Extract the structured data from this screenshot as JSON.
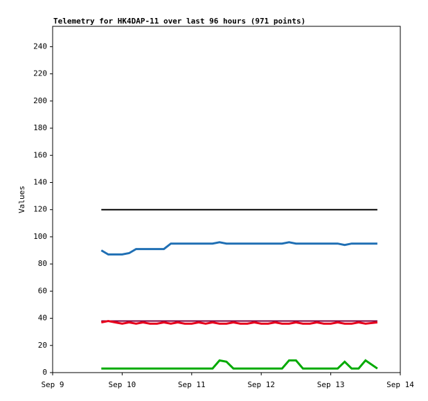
{
  "chart_data": {
    "type": "line",
    "title": "Telemetry for HK4DAP-11 over last 96 hours (971 points)",
    "y_label": "Values",
    "x": [
      9.7,
      9.8,
      9.9,
      10.0,
      10.1,
      10.2,
      10.3,
      10.4,
      10.5,
      10.6,
      10.7,
      10.8,
      10.9,
      11.0,
      11.1,
      11.2,
      11.3,
      11.4,
      11.5,
      11.6,
      11.7,
      11.8,
      11.9,
      12.0,
      12.1,
      12.2,
      12.3,
      12.4,
      12.5,
      12.6,
      12.7,
      12.8,
      12.9,
      13.0,
      13.1,
      13.2,
      13.3,
      13.4,
      13.5,
      13.67
    ],
    "xlim": [
      9,
      14
    ],
    "xticks": [
      {
        "value": 9,
        "label": "Sep 9"
      },
      {
        "value": 10,
        "label": "Sep 10"
      },
      {
        "value": 11,
        "label": "Sep 11"
      },
      {
        "value": 12,
        "label": "Sep 12"
      },
      {
        "value": 13,
        "label": "Sep 13"
      },
      {
        "value": 14,
        "label": "Sep 14"
      }
    ],
    "ylim": [
      0,
      255
    ],
    "yticks": [
      0,
      20,
      40,
      60,
      80,
      100,
      120,
      140,
      160,
      180,
      200,
      220,
      240
    ],
    "series": [
      {
        "color": "#000000",
        "values": [
          120,
          120,
          120,
          120,
          120,
          120,
          120,
          120,
          120,
          120,
          120,
          120,
          120,
          120,
          120,
          120,
          120,
          120,
          120,
          120,
          120,
          120,
          120,
          120,
          120,
          120,
          120,
          120,
          120,
          120,
          120,
          120,
          120,
          120,
          120,
          120,
          120,
          120,
          120,
          120
        ]
      },
      {
        "color": "#1f6fb4",
        "values": [
          90,
          87,
          87,
          87,
          88,
          91,
          91,
          91,
          91,
          91,
          95,
          95,
          95,
          95,
          95,
          95,
          95,
          96,
          95,
          95,
          95,
          95,
          95,
          95,
          95,
          95,
          95,
          96,
          95,
          95,
          95,
          95,
          95,
          95,
          95,
          94,
          95,
          95,
          95,
          95
        ]
      },
      {
        "color": "#800040",
        "values": [
          38,
          38,
          38,
          38,
          38,
          38,
          38,
          38,
          38,
          38,
          38,
          38,
          38,
          38,
          38,
          38,
          38,
          38,
          38,
          38,
          38,
          38,
          38,
          38,
          38,
          38,
          38,
          38,
          38,
          38,
          38,
          38,
          38,
          38,
          38,
          38,
          38,
          38,
          38,
          38
        ]
      },
      {
        "color": "#e8001c",
        "values": [
          37,
          38,
          37,
          36,
          37,
          36,
          37,
          36,
          36,
          37,
          36,
          37,
          36,
          36,
          37,
          36,
          37,
          36,
          36,
          37,
          36,
          36,
          37,
          36,
          36,
          37,
          36,
          36,
          37,
          36,
          36,
          37,
          36,
          36,
          37,
          36,
          36,
          37,
          36,
          37
        ]
      },
      {
        "color": "#00aa00",
        "values": [
          3,
          3,
          3,
          3,
          3,
          3,
          3,
          3,
          3,
          3,
          3,
          3,
          3,
          3,
          3,
          3,
          3,
          9,
          8,
          3,
          3,
          3,
          3,
          3,
          3,
          3,
          3,
          9,
          9,
          3,
          3,
          3,
          3,
          3,
          3,
          8,
          3,
          3,
          9,
          3
        ]
      }
    ]
  }
}
